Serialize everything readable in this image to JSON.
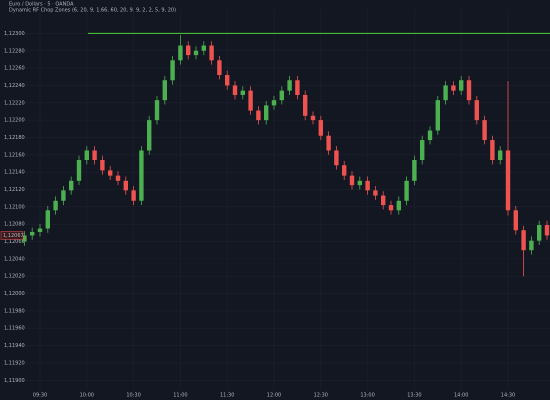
{
  "chart_data": {
    "type": "candlestick",
    "header": "Euro / Dollars · 5 · OANDA",
    "indicator": "Dynamic RF Chop Zones (6, 20, 9, 1.66, 60, 20, 9, 9, 2, 2, 5, 9, 20)",
    "categories": [
      null,
      null,
      "09:30",
      null,
      null,
      null,
      null,
      null,
      "10:00",
      null,
      null,
      null,
      null,
      null,
      "10:30",
      null,
      null,
      null,
      null,
      null,
      "11:00",
      null,
      null,
      null,
      null,
      null,
      "11:30",
      null,
      null,
      null,
      null,
      null,
      "12:00",
      null,
      null,
      null,
      null,
      null,
      "12:30",
      null,
      null,
      null,
      null,
      null,
      "13:00",
      null,
      null,
      null,
      null,
      null,
      "13:30",
      null,
      null,
      null,
      null,
      null,
      "14:00",
      null,
      null,
      null,
      null,
      null,
      "14:30",
      null,
      null,
      null,
      null,
      null
    ],
    "open": [
      1.1206,
      1.12067,
      1.12071,
      1.12075,
      1.12096,
      1.12107,
      1.12119,
      1.1213,
      1.12154,
      1.12165,
      1.12154,
      1.12142,
      1.12136,
      1.1213,
      1.12119,
      1.12107,
      1.12165,
      1.122,
      1.12223,
      1.12246,
      1.12269,
      1.12286,
      1.12275,
      1.1228,
      1.12286,
      1.12269,
      1.12252,
      1.1224,
      1.12229,
      1.12234,
      1.12211,
      1.122,
      1.12217,
      1.12223,
      1.12234,
      1.12246,
      1.12229,
      1.12205,
      1.122,
      1.12182,
      1.12165,
      1.12148,
      1.12136,
      1.12125,
      1.1213,
      1.12119,
      1.12113,
      1.12102,
      1.12096,
      1.12107,
      1.1213,
      1.12154,
      1.12177,
      1.12188,
      1.12223,
      1.1224,
      1.12234,
      1.12246,
      1.12223,
      1.122,
      1.12177,
      1.12154,
      1.12165,
      1.12096,
      1.12073,
      1.1205,
      1.12061,
      1.12079
    ],
    "high": [
      1.12072,
      1.12076,
      1.1208,
      1.12101,
      1.12112,
      1.12124,
      1.12135,
      1.12159,
      1.1217,
      1.1217,
      1.12159,
      1.12147,
      1.12141,
      1.12135,
      1.12124,
      1.1217,
      1.12205,
      1.12228,
      1.12251,
      1.12274,
      1.12298,
      1.12291,
      1.12285,
      1.12291,
      1.12291,
      1.12274,
      1.12257,
      1.12245,
      1.12239,
      1.12239,
      1.12216,
      1.12222,
      1.12228,
      1.12239,
      1.12251,
      1.12251,
      1.12234,
      1.1221,
      1.12205,
      1.12187,
      1.1217,
      1.12153,
      1.12141,
      1.12135,
      1.12135,
      1.12124,
      1.12118,
      1.12107,
      1.12112,
      1.12135,
      1.12159,
      1.12182,
      1.12193,
      1.12228,
      1.12245,
      1.12245,
      1.12251,
      1.12251,
      1.12228,
      1.12205,
      1.12182,
      1.1217,
      1.12245,
      1.12101,
      1.12078,
      1.12066,
      1.12084,
      1.12084
    ],
    "low": [
      1.12055,
      1.12062,
      1.12066,
      1.1207,
      1.12091,
      1.12102,
      1.12114,
      1.12125,
      1.12149,
      1.12149,
      1.12137,
      1.12131,
      1.12125,
      1.12114,
      1.12102,
      1.12102,
      1.1216,
      1.12195,
      1.12218,
      1.12241,
      1.12264,
      1.1227,
      1.1227,
      1.12275,
      1.12264,
      1.12247,
      1.12235,
      1.12224,
      1.12224,
      1.12206,
      1.12195,
      1.12195,
      1.12212,
      1.12218,
      1.12229,
      1.12224,
      1.122,
      1.12195,
      1.12177,
      1.1216,
      1.12143,
      1.12131,
      1.1212,
      1.1212,
      1.12114,
      1.12108,
      1.12097,
      1.12091,
      1.12091,
      1.12102,
      1.12125,
      1.12149,
      1.12172,
      1.12183,
      1.12218,
      1.12229,
      1.12229,
      1.12218,
      1.12195,
      1.12172,
      1.12149,
      1.12149,
      1.1209,
      1.12068,
      1.1202,
      1.12045,
      1.12056,
      1.12062
    ],
    "close": [
      1.12067,
      1.12071,
      1.12075,
      1.12096,
      1.12107,
      1.12119,
      1.1213,
      1.12154,
      1.12165,
      1.12154,
      1.12142,
      1.12136,
      1.1213,
      1.12119,
      1.12107,
      1.12165,
      1.122,
      1.12223,
      1.12246,
      1.12269,
      1.12286,
      1.12275,
      1.1228,
      1.12286,
      1.12269,
      1.12252,
      1.1224,
      1.12229,
      1.12234,
      1.12211,
      1.122,
      1.12217,
      1.12223,
      1.12234,
      1.12246,
      1.12229,
      1.12205,
      1.122,
      1.12182,
      1.12165,
      1.12148,
      1.12136,
      1.12125,
      1.1213,
      1.12119,
      1.12113,
      1.12102,
      1.12096,
      1.12107,
      1.1213,
      1.12154,
      1.12177,
      1.12188,
      1.12223,
      1.1224,
      1.12234,
      1.12246,
      1.12223,
      1.122,
      1.12177,
      1.12154,
      1.12165,
      1.12096,
      1.12073,
      1.1205,
      1.12061,
      1.12079,
      1.12067
    ],
    "up_color": "#4caf50",
    "down_color": "#ef5350",
    "level": {
      "value": 1.123,
      "color": "#4cd137"
    },
    "last_price": {
      "value": 1.12067,
      "label": "1,12067"
    },
    "ylim": [
      1.11883,
      1.12327
    ],
    "yticks": [
      {
        "value": 1.123,
        "label": "1,12300"
      },
      {
        "value": 1.1228,
        "label": "1,12280"
      },
      {
        "value": 1.1226,
        "label": "1,12260"
      },
      {
        "value": 1.1224,
        "label": "1,12240"
      },
      {
        "value": 1.1222,
        "label": "1,12220"
      },
      {
        "value": 1.122,
        "label": "1,12200"
      },
      {
        "value": 1.1218,
        "label": "1,12180"
      },
      {
        "value": 1.1216,
        "label": "1,12160"
      },
      {
        "value": 1.1214,
        "label": "1,12140"
      },
      {
        "value": 1.1212,
        "label": "1,12120"
      },
      {
        "value": 1.121,
        "label": "1,12100"
      },
      {
        "value": 1.1208,
        "label": "1,12080"
      },
      {
        "value": 1.1206,
        "label": "1,12060"
      },
      {
        "value": 1.1204,
        "label": "1,12040"
      },
      {
        "value": 1.1202,
        "label": "1,12020"
      },
      {
        "value": 1.12,
        "label": "1,12000"
      },
      {
        "value": 1.1198,
        "label": "1,11980"
      },
      {
        "value": 1.1196,
        "label": "1,11960"
      },
      {
        "value": 1.1194,
        "label": "1,11940"
      },
      {
        "value": 1.1192,
        "label": "1,11920"
      },
      {
        "value": 1.119,
        "label": "1,11900"
      }
    ],
    "grid": true
  }
}
